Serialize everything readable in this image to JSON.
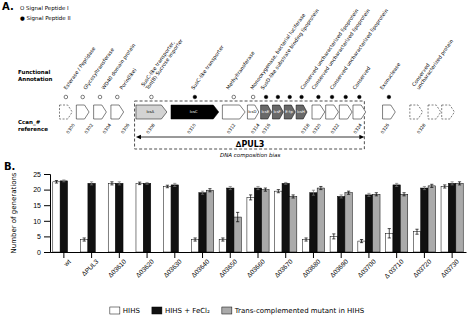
{
  "chart_data": [
    {
      "type": "diagram",
      "title": "A.",
      "annotations": [
        "O  Signal Peptide I",
        "●  Signal Peptide II",
        "Functional\nAnnotation",
        "Ccan_#\nreference",
        "∆PUL3",
        "DNA composition bias",
        "IcsA",
        "IcsC",
        "IcsD",
        "IcsE",
        "IcsF",
        "E-tp",
        "IcsH",
        "Esterase / Peptidase",
        "Glycosyltransferase",
        "WD40 domain protein",
        "Porin(like)",
        "SusC-like transporter,\nTon(B) Sucrose importer",
        "SusC-like transporter",
        "Methyltransferase",
        "Monooxygenase, bacterial luciferase",
        "SusD-like substrate binding lipoprotein",
        "Conserved uncharacterized lipoprotein",
        "Conserved uncharacterized lipoprotein",
        "Conserved uncharacterized lipoprotein",
        "Conserved",
        "Exonuclease",
        "Conserved\nuncharacterized protein",
        "0300",
        "0302",
        "0304",
        "0306",
        "0308",
        "0310",
        "0312",
        "0314",
        "0316",
        "0318",
        "0320",
        "0322",
        "0324",
        "0326",
        "0328"
      ]
    },
    {
      "type": "bar",
      "title": "B.",
      "categories": [
        "wt",
        "ΔPUL3",
        "Δ03610",
        "Δ03620",
        "Δ03630",
        "Δ03640",
        "Δ03650",
        "Δ03660",
        "Δ03670",
        "Δ03680",
        "Δ03690",
        "Δ03700",
        "Δ 03710",
        "Δ03720",
        "Δ03730"
      ],
      "series": [
        {
          "name": "HIHS",
          "color": "#ffffff",
          "values": [
            22.5,
            4.0,
            22.0,
            22.0,
            21.0,
            4.0,
            4.0,
            17.5,
            19.5,
            4.0,
            5.0,
            3.5,
            6.0,
            6.5,
            21.0
          ],
          "errors": [
            0.4,
            0.5,
            0.5,
            0.4,
            0.4,
            0.5,
            0.5,
            0.8,
            0.5,
            0.5,
            0.8,
            0.5,
            1.5,
            0.8,
            0.5
          ]
        },
        {
          "name": "HIHS + FeCl₂",
          "color": "#111111",
          "values": [
            22.8,
            22.0,
            22.0,
            22.0,
            21.5,
            19.0,
            20.5,
            20.5,
            22.0,
            19.0,
            17.8,
            18.3,
            21.5,
            20.5,
            22.0
          ],
          "errors": [
            0.3,
            0.5,
            0.5,
            0.3,
            0.5,
            0.5,
            0.5,
            0.5,
            0.3,
            0.8,
            0.5,
            0.5,
            0.5,
            0.5,
            0.5
          ]
        },
        {
          "name": "Trans-complemented mutant in HIHS",
          "color": "#aaaaaa",
          "values": [
            null,
            null,
            null,
            null,
            null,
            19.8,
            11.2,
            20.0,
            17.8,
            20.5,
            19.0,
            18.5,
            18.5,
            21.2,
            22.0
          ],
          "errors": [
            null,
            null,
            null,
            null,
            null,
            0.5,
            1.5,
            0.5,
            0.5,
            0.5,
            0.5,
            0.5,
            0.5,
            0.5,
            0.5
          ]
        }
      ],
      "ylabel": "Number of generations",
      "ylim": [
        0,
        25
      ],
      "yticks": [
        0,
        5,
        10,
        15,
        20,
        25
      ],
      "legend": "bottom"
    }
  ]
}
